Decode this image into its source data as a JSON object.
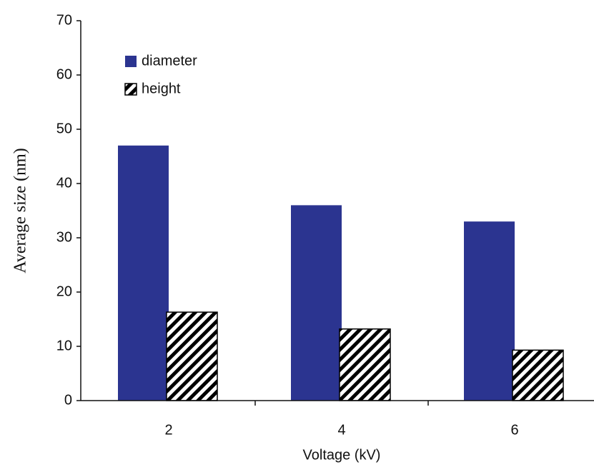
{
  "chart_data": {
    "type": "bar",
    "x_label": "Voltage (kV)",
    "y_label": "Average size (nm)",
    "categories": [
      "2",
      "4",
      "6"
    ],
    "series": [
      {
        "name": "diameter",
        "color": "#2b3490",
        "values": [
          47,
          36,
          33
        ]
      },
      {
        "name": "height",
        "color": "hatched",
        "values": [
          16.3,
          13.2,
          9.3
        ]
      }
    ],
    "ylim": [
      0,
      70
    ],
    "yticks": [
      0,
      10,
      20,
      30,
      40,
      50,
      60,
      70
    ],
    "legend": "upper-left",
    "grid": false
  }
}
